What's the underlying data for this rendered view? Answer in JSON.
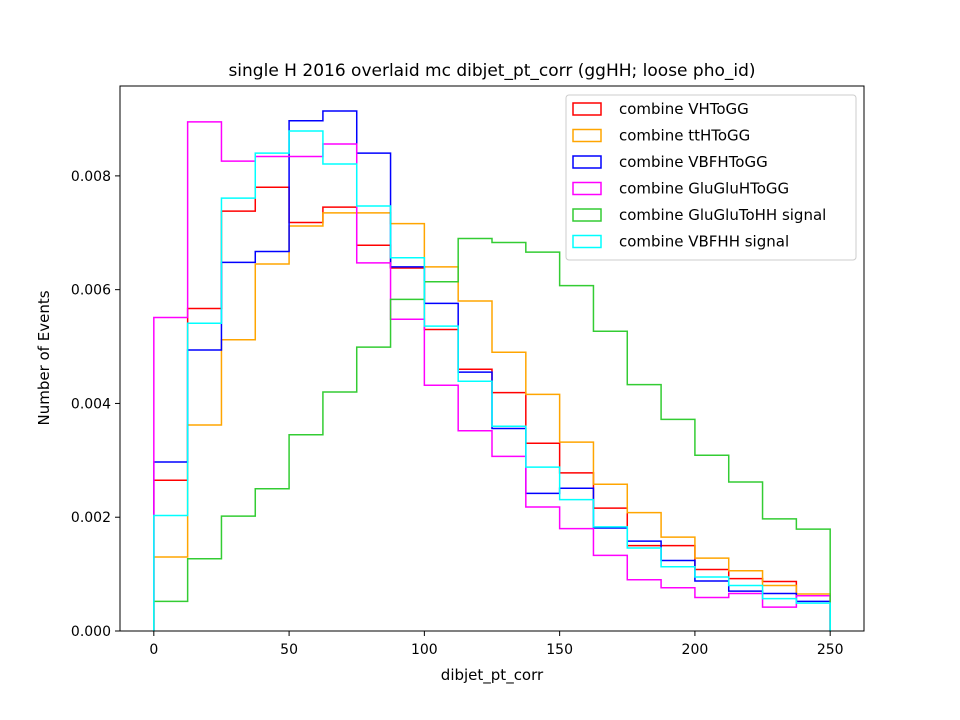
{
  "chart_data": {
    "type": "histogram-step",
    "title": "single H 2016 overlaid mc dibjet_pt_corr (ggHH; loose pho_id)",
    "xlabel": "dibjet_pt_corr",
    "ylabel": "Number of Events",
    "xlim": [
      -12.5,
      262.5
    ],
    "ylim": [
      0,
      0.00958
    ],
    "xticks": [
      0,
      50,
      100,
      150,
      200,
      250
    ],
    "yticks": [
      0.0,
      0.002,
      0.004,
      0.006,
      0.008
    ],
    "ytick_labels": [
      "0.000",
      "0.002",
      "0.004",
      "0.006",
      "0.008"
    ],
    "bin_edges": [
      0,
      12.5,
      25,
      37.5,
      50,
      62.5,
      75,
      87.5,
      100,
      112.5,
      125,
      137.5,
      150,
      162.5,
      175,
      187.5,
      200,
      212.5,
      225,
      237.5,
      250
    ],
    "grid": false,
    "legend_position": "upper right",
    "series": [
      {
        "name": "combine VHToGG",
        "color": "#ff0000",
        "values": [
          0.00265,
          0.00567,
          0.00738,
          0.0078,
          0.00718,
          0.00745,
          0.00678,
          0.00638,
          0.0053,
          0.0046,
          0.00419,
          0.0033,
          0.00278,
          0.00216,
          0.0015,
          0.0015,
          0.00108,
          0.00092,
          0.00087,
          0.00062
        ]
      },
      {
        "name": "combine ttHToGG",
        "color": "#ffa500",
        "values": [
          0.0013,
          0.00362,
          0.00512,
          0.00645,
          0.00712,
          0.00735,
          0.00735,
          0.00716,
          0.0064,
          0.0058,
          0.0049,
          0.00416,
          0.00332,
          0.00258,
          0.00208,
          0.00165,
          0.00128,
          0.00106,
          0.0008,
          0.00065
        ]
      },
      {
        "name": "combine VBFHToGG",
        "color": "#0000ff",
        "values": [
          0.00297,
          0.00494,
          0.00648,
          0.00667,
          0.00897,
          0.00914,
          0.0084,
          0.0064,
          0.00576,
          0.00455,
          0.00356,
          0.00242,
          0.00251,
          0.00181,
          0.00158,
          0.00124,
          0.00088,
          0.0007,
          0.00066,
          0.00052
        ]
      },
      {
        "name": "combine GluGluHToGG",
        "color": "#ff00ff",
        "values": [
          0.00551,
          0.00895,
          0.00826,
          0.00834,
          0.00834,
          0.00856,
          0.00647,
          0.00548,
          0.00432,
          0.00352,
          0.00307,
          0.00218,
          0.0018,
          0.00133,
          0.0009,
          0.00076,
          0.00059,
          0.00066,
          0.00042,
          0.00062
        ]
      },
      {
        "name": "combine GluGluToHH signal",
        "color": "#33cc33",
        "values": [
          0.00052,
          0.00127,
          0.00202,
          0.0025,
          0.00345,
          0.0042,
          0.00499,
          0.00583,
          0.00614,
          0.0069,
          0.00683,
          0.00666,
          0.00607,
          0.00527,
          0.00433,
          0.00372,
          0.00309,
          0.00262,
          0.00197,
          0.00179
        ]
      },
      {
        "name": "combine VBFHH signal",
        "color": "#00ffff",
        "values": [
          0.00203,
          0.00541,
          0.00761,
          0.0084,
          0.00879,
          0.00821,
          0.00747,
          0.00656,
          0.00536,
          0.00439,
          0.0036,
          0.00288,
          0.00231,
          0.00183,
          0.00146,
          0.00113,
          0.00095,
          0.0008,
          0.00057,
          0.00049
        ]
      }
    ]
  }
}
